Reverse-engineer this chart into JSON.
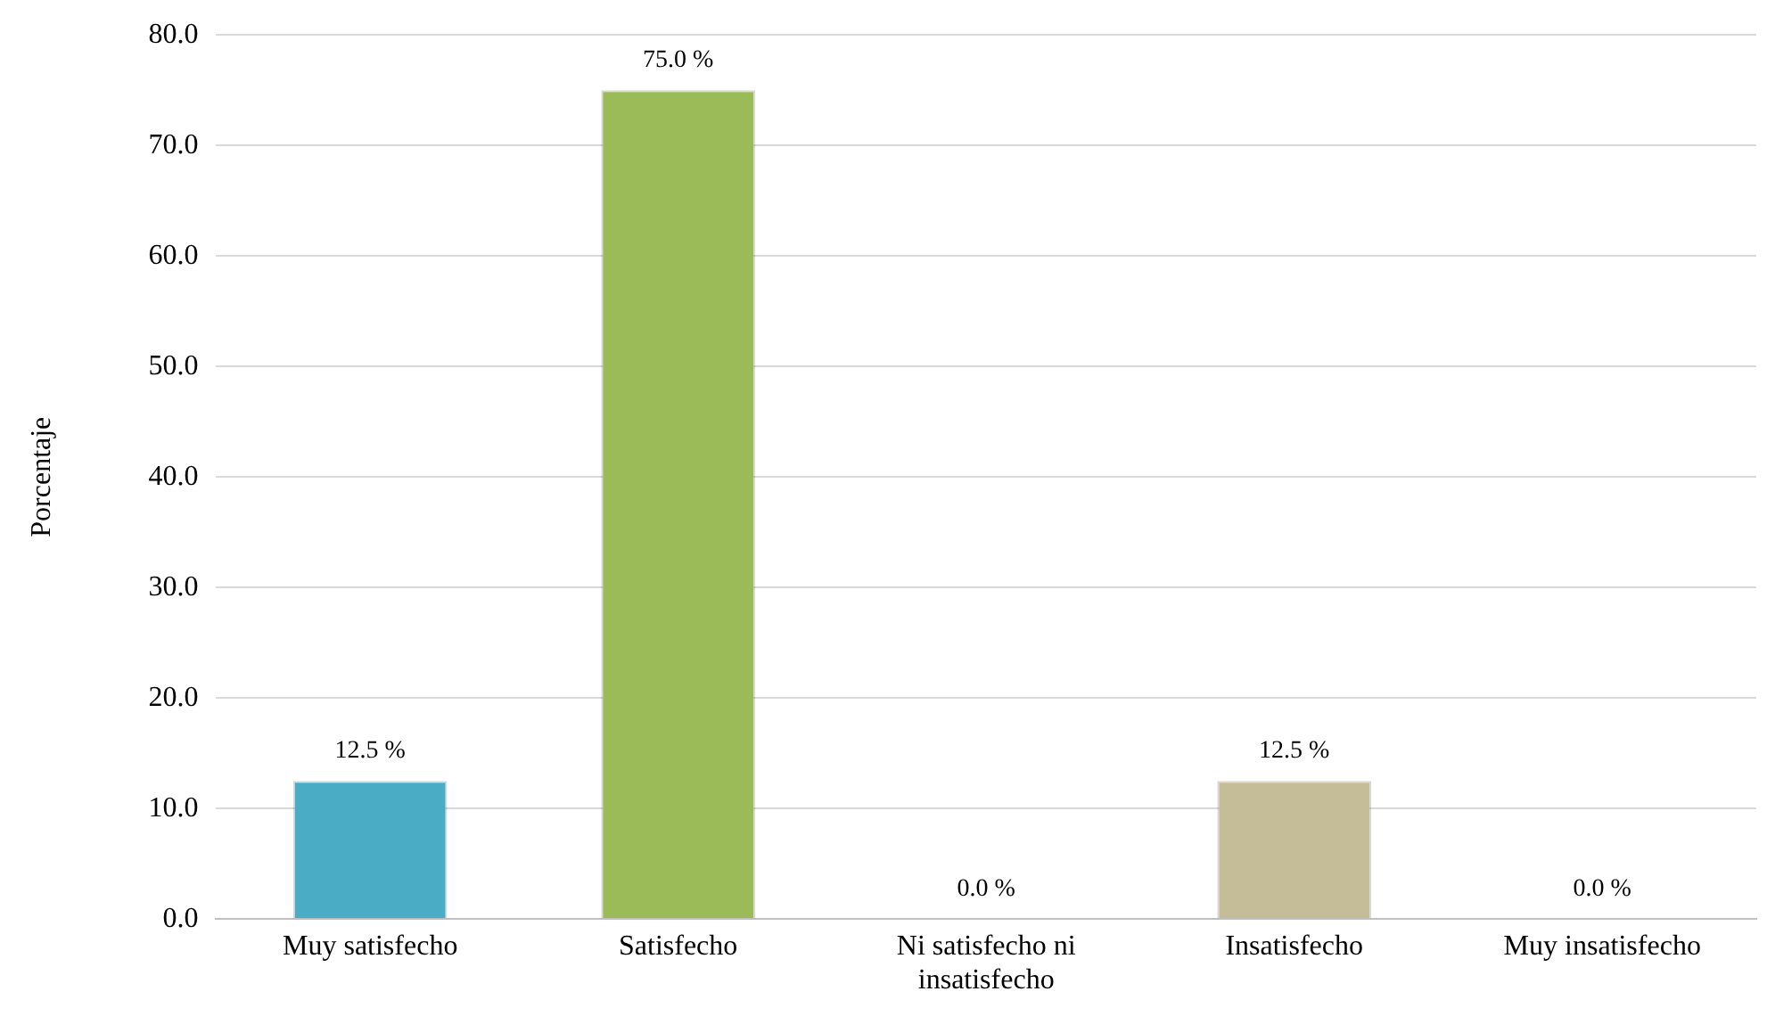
{
  "chart_data": {
    "type": "bar",
    "ylabel": "Porcentaje",
    "categories": [
      "Muy satisfecho",
      "Satisfecho",
      "Ni satisfecho ni insatisfecho",
      "Insatisfecho",
      "Muy insatisfecho"
    ],
    "values": [
      12.5,
      75.0,
      0.0,
      12.5,
      0.0
    ],
    "colors": [
      "#4bacc6",
      "#9bbb59",
      "#8064a2",
      "#c4bd97",
      "#f79646"
    ],
    "value_labels": [
      "12.5 %",
      "75.0 %",
      "0.0 %",
      "12.5 %",
      "0.0 %"
    ],
    "ylim": [
      0,
      80
    ],
    "yticks": [
      {
        "value": 0,
        "label": "0.0"
      },
      {
        "value": 10,
        "label": "10.0"
      },
      {
        "value": 20,
        "label": "20.0"
      },
      {
        "value": 30,
        "label": "30.0"
      },
      {
        "value": 40,
        "label": "40.0"
      },
      {
        "value": 50,
        "label": "50.0"
      },
      {
        "value": 60,
        "label": "60.0"
      },
      {
        "value": 70,
        "label": "70.0"
      },
      {
        "value": 80,
        "label": "80.0"
      }
    ],
    "grid": "y"
  }
}
